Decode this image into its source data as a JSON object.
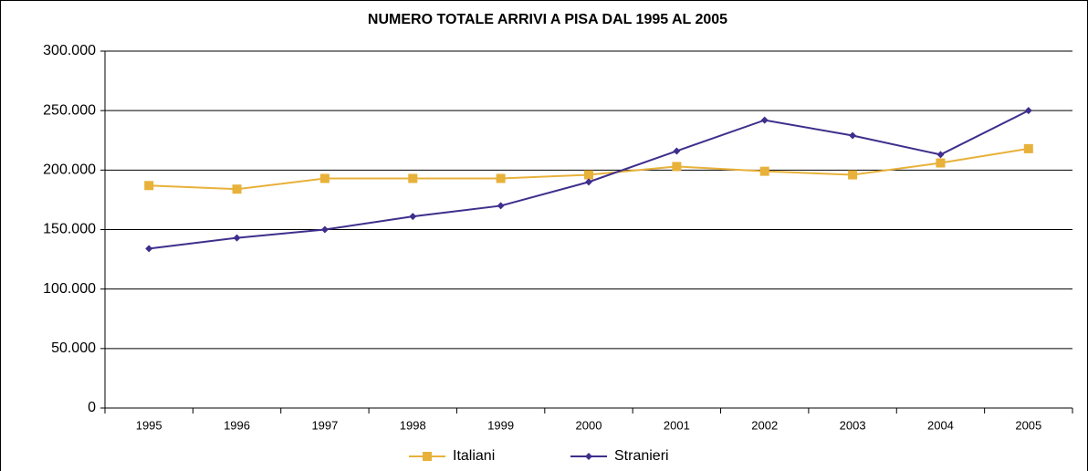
{
  "chart_data": {
    "type": "line",
    "title": "NUMERO TOTALE ARRIVI A PISA DAL 1995 AL 2005",
    "categories": [
      "1995",
      "1996",
      "1997",
      "1998",
      "1999",
      "2000",
      "2001",
      "2002",
      "2003",
      "2004",
      "2005"
    ],
    "series": [
      {
        "name": "Italiani",
        "color": "#e8b13a",
        "values": [
          187000,
          184000,
          193000,
          193000,
          193000,
          196000,
          203000,
          199000,
          196000,
          206000,
          218000
        ]
      },
      {
        "name": "Stranieri",
        "color": "#3f2e8c",
        "values": [
          134000,
          143000,
          150000,
          161000,
          170000,
          190000,
          216000,
          242000,
          229000,
          213000,
          250000
        ]
      }
    ],
    "ylim": [
      0,
      300000
    ],
    "yticks": [
      0,
      {
        "value": 50000,
        "label": "50.000"
      },
      {
        "value": 100000,
        "label": "100.000"
      },
      {
        "value": 150000,
        "label": "150.000"
      },
      {
        "value": 200000,
        "label": "200.000"
      },
      {
        "value": 250000,
        "label": "250.000"
      },
      {
        "value": 300000,
        "label": "300.000"
      }
    ],
    "grid": true,
    "legend": "bottom"
  }
}
